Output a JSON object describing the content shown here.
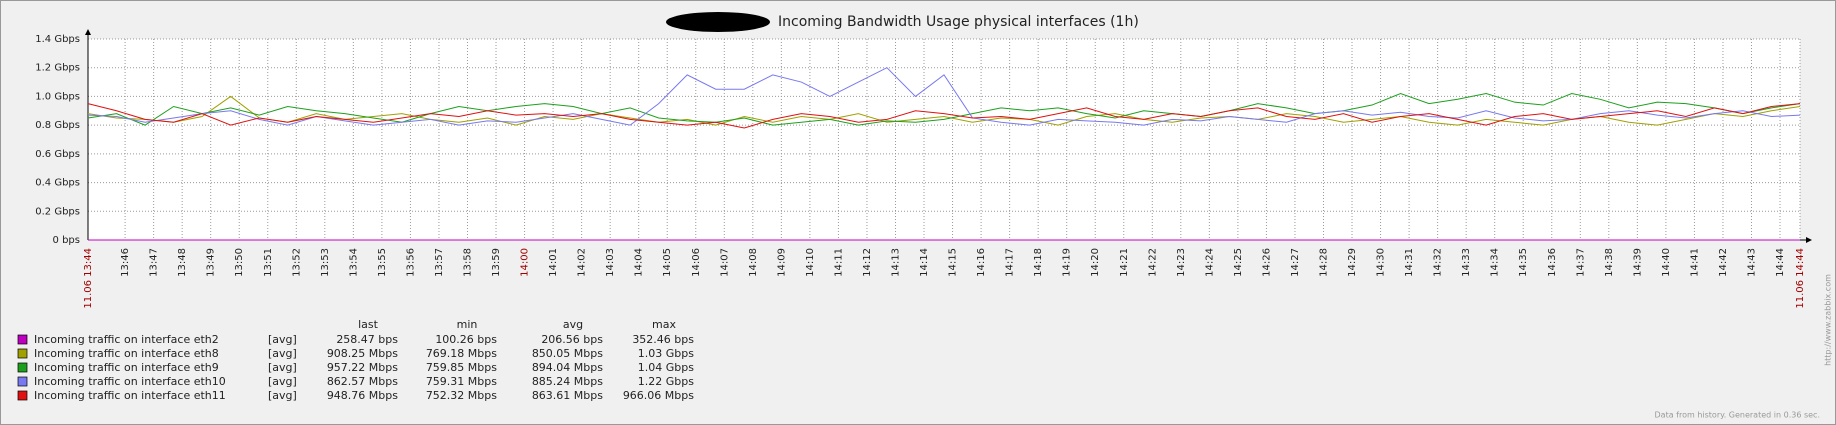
{
  "chart_data": {
    "type": "line",
    "title": "Incoming Bandwidth Usage physical interfaces (1h)",
    "xlim": [
      44.7,
      104.7
    ],
    "ylim": [
      0,
      1.4
    ],
    "grid": true,
    "yticks": [
      {
        "value": 0,
        "label": "0 bps"
      },
      {
        "value": 0.2,
        "label": "0.2 Gbps"
      },
      {
        "value": 0.4,
        "label": "0.4 Gbps"
      },
      {
        "value": 0.6,
        "label": "0.6 Gbps"
      },
      {
        "value": 0.8,
        "label": "0.8 Gbps"
      },
      {
        "value": 1.0,
        "label": "1.0 Gbps"
      },
      {
        "value": 1.2,
        "label": "1.2 Gbps"
      },
      {
        "value": 1.4,
        "label": "1.4 Gbps"
      }
    ],
    "xticks": [
      {
        "value": 44.7,
        "label": "11.06 13:44",
        "color": "#a00000"
      },
      {
        "value": 46,
        "label": "13:46"
      },
      {
        "value": 47,
        "label": "13:47"
      },
      {
        "value": 48,
        "label": "13:48"
      },
      {
        "value": 49,
        "label": "13:49"
      },
      {
        "value": 50,
        "label": "13:50"
      },
      {
        "value": 51,
        "label": "13:51"
      },
      {
        "value": 52,
        "label": "13:52"
      },
      {
        "value": 53,
        "label": "13:53"
      },
      {
        "value": 54,
        "label": "13:54"
      },
      {
        "value": 55,
        "label": "13:55"
      },
      {
        "value": 56,
        "label": "13:56"
      },
      {
        "value": 57,
        "label": "13:57"
      },
      {
        "value": 58,
        "label": "13:58"
      },
      {
        "value": 59,
        "label": "13:59"
      },
      {
        "value": 60,
        "label": "14:00",
        "color": "#a00000"
      },
      {
        "value": 61,
        "label": "14:01"
      },
      {
        "value": 62,
        "label": "14:02"
      },
      {
        "value": 63,
        "label": "14:03"
      },
      {
        "value": 64,
        "label": "14:04"
      },
      {
        "value": 65,
        "label": "14:05"
      },
      {
        "value": 66,
        "label": "14:06"
      },
      {
        "value": 67,
        "label": "14:07"
      },
      {
        "value": 68,
        "label": "14:08"
      },
      {
        "value": 69,
        "label": "14:09"
      },
      {
        "value": 70,
        "label": "14:10"
      },
      {
        "value": 71,
        "label": "14:11"
      },
      {
        "value": 72,
        "label": "14:12"
      },
      {
        "value": 73,
        "label": "14:13"
      },
      {
        "value": 74,
        "label": "14:14"
      },
      {
        "value": 75,
        "label": "14:15"
      },
      {
        "value": 76,
        "label": "14:16"
      },
      {
        "value": 77,
        "label": "14:17"
      },
      {
        "value": 78,
        "label": "14:18"
      },
      {
        "value": 79,
        "label": "14:19"
      },
      {
        "value": 80,
        "label": "14:20"
      },
      {
        "value": 81,
        "label": "14:21"
      },
      {
        "value": 82,
        "label": "14:22"
      },
      {
        "value": 83,
        "label": "14:23"
      },
      {
        "value": 84,
        "label": "14:24"
      },
      {
        "value": 85,
        "label": "14:25"
      },
      {
        "value": 86,
        "label": "14:26"
      },
      {
        "value": 87,
        "label": "14:27"
      },
      {
        "value": 88,
        "label": "14:28"
      },
      {
        "value": 89,
        "label": "14:29"
      },
      {
        "value": 90,
        "label": "14:30"
      },
      {
        "value": 91,
        "label": "14:31"
      },
      {
        "value": 92,
        "label": "14:32"
      },
      {
        "value": 93,
        "label": "14:33"
      },
      {
        "value": 94,
        "label": "14:34"
      },
      {
        "value": 95,
        "label": "14:35"
      },
      {
        "value": 96,
        "label": "14:36"
      },
      {
        "value": 97,
        "label": "14:37"
      },
      {
        "value": 98,
        "label": "14:38"
      },
      {
        "value": 99,
        "label": "14:39"
      },
      {
        "value": 100,
        "label": "14:40"
      },
      {
        "value": 101,
        "label": "14:41"
      },
      {
        "value": 102,
        "label": "14:42"
      },
      {
        "value": 103,
        "label": "14:43"
      },
      {
        "value": 104,
        "label": "14:44"
      },
      {
        "value": 104.7,
        "label": "11.06 14:44",
        "color": "#a00000"
      }
    ],
    "x": [
      44.7,
      45.7,
      46.7,
      47.7,
      48.7,
      49.7,
      50.7,
      51.7,
      52.7,
      53.7,
      54.7,
      55.7,
      56.7,
      57.7,
      58.7,
      59.7,
      60.7,
      61.7,
      62.7,
      63.7,
      64.7,
      65.7,
      66.7,
      67.7,
      68.7,
      69.7,
      70.7,
      71.7,
      72.7,
      73.7,
      74.7,
      75.7,
      76.7,
      77.7,
      78.7,
      79.7,
      80.7,
      81.7,
      82.7,
      83.7,
      84.7,
      85.7,
      86.7,
      87.7,
      88.7,
      89.7,
      90.7,
      91.7,
      92.7,
      93.7,
      94.7,
      95.7,
      96.7,
      97.7,
      98.7,
      99.7,
      100.7,
      101.7,
      102.7,
      103.7,
      104.7
    ],
    "series": [
      {
        "name": "Incoming traffic on interface eth2",
        "color": "#c000c0",
        "values": [
          0,
          0,
          0,
          0,
          0,
          0,
          0,
          0,
          0,
          0,
          0,
          0,
          0,
          0,
          0,
          0,
          0,
          0,
          0,
          0,
          0,
          0,
          0,
          0,
          0,
          0,
          0,
          0,
          0,
          0,
          0,
          0,
          0,
          0,
          0,
          0,
          0,
          0,
          0,
          0,
          0,
          0,
          0,
          0,
          0,
          0,
          0,
          0,
          0,
          0,
          0,
          0,
          0,
          0,
          0,
          0,
          0,
          0,
          0,
          0,
          0
        ]
      },
      {
        "name": "Incoming traffic on interface eth8",
        "color": "#a0a000",
        "values": [
          0.88,
          0.85,
          0.84,
          0.82,
          0.86,
          1.0,
          0.85,
          0.82,
          0.88,
          0.84,
          0.86,
          0.88,
          0.84,
          0.82,
          0.85,
          0.8,
          0.86,
          0.84,
          0.88,
          0.85,
          0.82,
          0.84,
          0.8,
          0.86,
          0.82,
          0.86,
          0.84,
          0.88,
          0.82,
          0.84,
          0.86,
          0.82,
          0.85,
          0.84,
          0.8,
          0.86,
          0.88,
          0.84,
          0.82,
          0.85,
          0.86,
          0.84,
          0.88,
          0.86,
          0.82,
          0.84,
          0.86,
          0.82,
          0.8,
          0.84,
          0.82,
          0.8,
          0.84,
          0.86,
          0.82,
          0.8,
          0.84,
          0.88,
          0.86,
          0.9,
          0.93
        ]
      },
      {
        "name": "Incoming traffic on interface eth9",
        "color": "#1ca01c",
        "values": [
          0.85,
          0.88,
          0.8,
          0.93,
          0.88,
          0.92,
          0.87,
          0.93,
          0.9,
          0.88,
          0.85,
          0.82,
          0.88,
          0.93,
          0.9,
          0.93,
          0.95,
          0.93,
          0.88,
          0.92,
          0.85,
          0.83,
          0.82,
          0.85,
          0.8,
          0.82,
          0.84,
          0.8,
          0.83,
          0.82,
          0.84,
          0.88,
          0.92,
          0.9,
          0.92,
          0.88,
          0.85,
          0.9,
          0.88,
          0.86,
          0.9,
          0.95,
          0.92,
          0.88,
          0.9,
          0.94,
          1.02,
          0.95,
          0.98,
          1.02,
          0.96,
          0.94,
          1.02,
          0.98,
          0.92,
          0.96,
          0.95,
          0.92,
          0.88,
          0.92,
          0.95
        ]
      },
      {
        "name": "Incoming traffic on interface eth10",
        "color": "#7878f0",
        "values": [
          0.87,
          0.86,
          0.82,
          0.85,
          0.88,
          0.9,
          0.84,
          0.8,
          0.86,
          0.83,
          0.8,
          0.82,
          0.84,
          0.8,
          0.83,
          0.82,
          0.85,
          0.88,
          0.84,
          0.8,
          0.95,
          1.15,
          1.05,
          1.05,
          1.15,
          1.1,
          1.0,
          1.1,
          1.2,
          1.0,
          1.15,
          0.85,
          0.82,
          0.8,
          0.84,
          0.83,
          0.82,
          0.8,
          0.84,
          0.83,
          0.86,
          0.84,
          0.82,
          0.88,
          0.9,
          0.87,
          0.89,
          0.86,
          0.85,
          0.9,
          0.85,
          0.83,
          0.84,
          0.88,
          0.9,
          0.87,
          0.85,
          0.88,
          0.9,
          0.86,
          0.87
        ]
      },
      {
        "name": "Incoming traffic on interface eth11",
        "color": "#e01010",
        "values": [
          0.95,
          0.9,
          0.84,
          0.82,
          0.88,
          0.8,
          0.85,
          0.82,
          0.86,
          0.84,
          0.82,
          0.85,
          0.88,
          0.86,
          0.9,
          0.87,
          0.88,
          0.86,
          0.88,
          0.84,
          0.82,
          0.8,
          0.82,
          0.78,
          0.84,
          0.88,
          0.86,
          0.82,
          0.84,
          0.9,
          0.88,
          0.85,
          0.86,
          0.84,
          0.88,
          0.92,
          0.86,
          0.84,
          0.88,
          0.86,
          0.9,
          0.92,
          0.86,
          0.84,
          0.88,
          0.82,
          0.86,
          0.88,
          0.84,
          0.8,
          0.86,
          0.88,
          0.84,
          0.86,
          0.88,
          0.9,
          0.86,
          0.92,
          0.88,
          0.93,
          0.95
        ]
      }
    ],
    "legend": {
      "columns": [
        "last",
        "min",
        "avg",
        "max"
      ],
      "rows": [
        {
          "function": "[avg]",
          "stats": [
            "258.47 bps",
            "100.26 bps",
            "206.56 bps",
            "352.46 bps"
          ]
        },
        {
          "function": "[avg]",
          "stats": [
            "908.25 Mbps",
            "769.18 Mbps",
            "850.05 Mbps",
            "1.03 Gbps"
          ]
        },
        {
          "function": "[avg]",
          "stats": [
            "957.22 Mbps",
            "759.85 Mbps",
            "894.04 Mbps",
            "1.04 Gbps"
          ]
        },
        {
          "function": "[avg]",
          "stats": [
            "862.57 Mbps",
            "759.31 Mbps",
            "885.24 Mbps",
            "1.22 Gbps"
          ]
        },
        {
          "function": "[avg]",
          "stats": [
            "948.76 Mbps",
            "752.32 Mbps",
            "863.61 Mbps",
            "966.06 Mbps"
          ]
        }
      ]
    },
    "footer": "Data from history. Generated in 0.36 sec.",
    "watermark": "http://www.zabbix.com"
  }
}
